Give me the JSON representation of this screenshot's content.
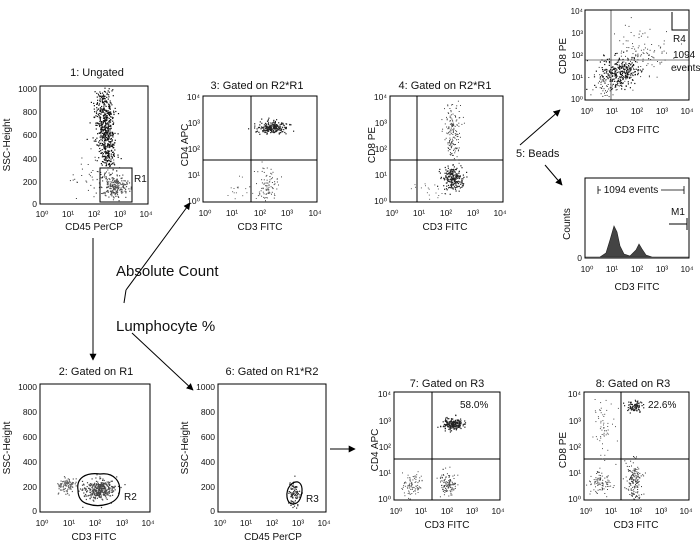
{
  "panels": {
    "p1": {
      "title": "1: Ungated",
      "ylabel": "SSC-Height",
      "xlabel": "CD45 PerCP",
      "region": "R1",
      "yticks": [
        "1000",
        "800",
        "600",
        "400",
        "200",
        "0"
      ],
      "xticks": [
        "10⁰",
        "10¹",
        "10²",
        "10³",
        "10⁴"
      ]
    },
    "p2": {
      "title": "2: Gated on R1",
      "ylabel": "SSC-Height",
      "xlabel": "CD3 FITC",
      "region": "R2",
      "yticks": [
        "1000",
        "800",
        "600",
        "400",
        "200",
        "0"
      ],
      "xticks": [
        "10⁰",
        "10¹",
        "10²",
        "10³",
        "10⁴"
      ]
    },
    "p3": {
      "title": "3: Gated on R2*R1",
      "ylabel": "CD4 APC",
      "xlabel": "CD3 FITC",
      "yticks": [
        "10⁴",
        "10³",
        "10²",
        "10¹",
        "10⁰"
      ],
      "xticks": [
        "10⁰",
        "10¹",
        "10²",
        "10³",
        "10⁴"
      ]
    },
    "p4": {
      "title": "4: Gated on R2*R1",
      "ylabel": "CD8 PE",
      "xlabel": "CD3 FITC",
      "yticks": [
        "10⁴",
        "10³",
        "10²",
        "10¹",
        "10⁰"
      ],
      "xticks": [
        "10⁰",
        "10¹",
        "10²",
        "10³",
        "10⁴"
      ]
    },
    "p5a": {
      "ylabel": "CD8 PE",
      "xlabel": "CD3 FITC",
      "region": "R4",
      "annotation": "1094 events",
      "yticks": [
        "10⁴",
        "10³",
        "10²",
        "10¹",
        "10⁰"
      ],
      "xticks": [
        "10⁰",
        "10¹",
        "10²",
        "10³",
        "10⁴"
      ]
    },
    "p5b": {
      "ylabel": "Counts",
      "xlabel": "CD3 FITC",
      "region": "M1",
      "annotation": "1094 events",
      "yticks": [
        "0"
      ],
      "xticks": [
        "10⁰",
        "10¹",
        "10²",
        "10³",
        "10⁴"
      ]
    },
    "p6": {
      "title": "6: Gated on R1*R2",
      "ylabel": "SSC-Height",
      "xlabel": "CD45 PerCP",
      "region": "R3",
      "yticks": [
        "1000",
        "800",
        "600",
        "400",
        "200",
        "0"
      ],
      "xticks": [
        "10⁰",
        "10¹",
        "10²",
        "10³",
        "10⁴"
      ]
    },
    "p7": {
      "title": "7: Gated on R3",
      "ylabel": "CD4 APC",
      "xlabel": "CD3 FITC",
      "percent": "58.0%",
      "yticks": [
        "10⁴",
        "10³",
        "10²",
        "10¹",
        "10⁰"
      ],
      "xticks": [
        "10⁰",
        "10¹",
        "10²",
        "10³",
        "10⁴"
      ]
    },
    "p8": {
      "title": "8: Gated on R3",
      "ylabel": "CD8 PE",
      "xlabel": "CD3 FITC",
      "percent": "22.6%",
      "yticks": [
        "10⁴",
        "10³",
        "10²",
        "10¹",
        "10⁰"
      ],
      "xticks": [
        "10⁰",
        "10¹",
        "10²",
        "10³",
        "10⁴"
      ]
    }
  },
  "labels": {
    "beads": "5: Beads",
    "absolute_count": "Absolute Count",
    "lymphocyte_pct": "Lumphocyte %"
  }
}
